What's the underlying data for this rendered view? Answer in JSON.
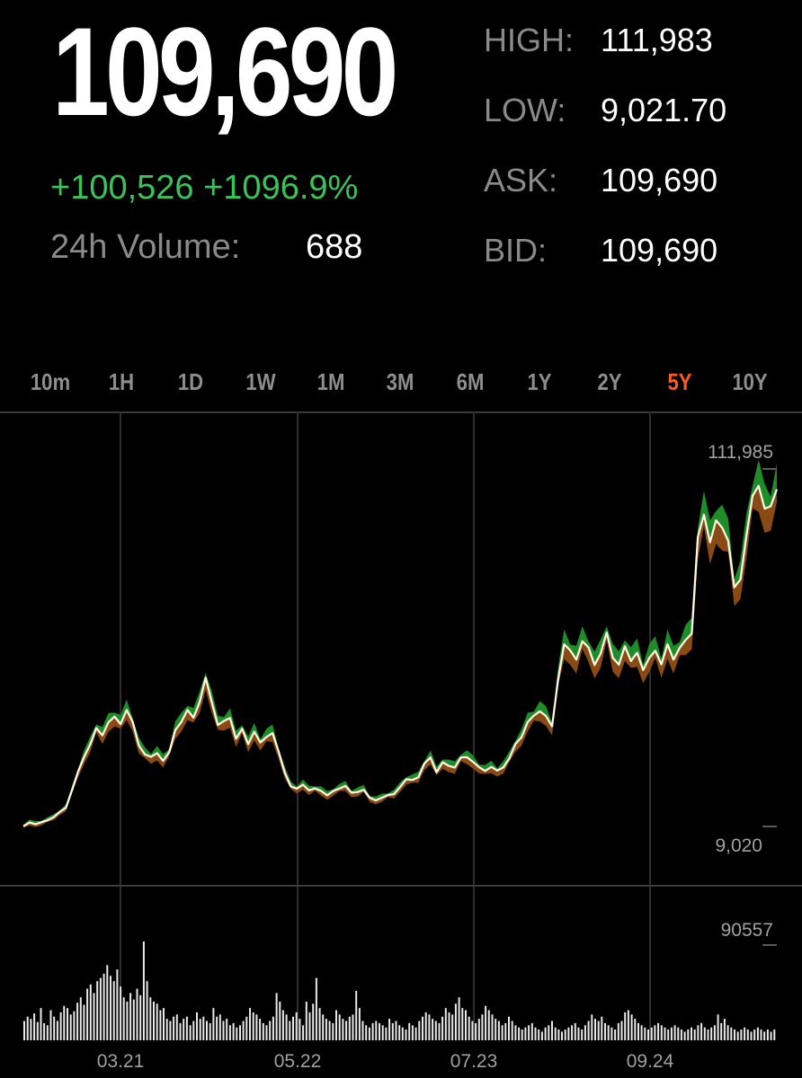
{
  "header": {
    "price": "109,690",
    "change": "+100,526 +1096.9%",
    "volume_label": "24h Volume:",
    "volume_value": "688",
    "stats": [
      {
        "label": "HIGH:",
        "value": "111,983"
      },
      {
        "label": "LOW:",
        "value": "9,021.70"
      },
      {
        "label": "ASK:",
        "value": "109,690"
      },
      {
        "label": "BID:",
        "value": "109,690"
      }
    ]
  },
  "range_tabs": {
    "items": [
      "10m",
      "1H",
      "1D",
      "1W",
      "1M",
      "3M",
      "6M",
      "1Y",
      "2Y",
      "5Y",
      "10Y"
    ],
    "active": "5Y"
  },
  "colors": {
    "up": "#39c35a",
    "active_tab": "#ff5a1f",
    "high_band": "#1f8c2a",
    "low_band": "#8a4a14",
    "line": "#fffbe6"
  },
  "chart_data": [
    {
      "type": "line",
      "title": "",
      "x_ticks": [
        "03.21",
        "05.22",
        "07.23",
        "09.24"
      ],
      "y_max_label": "111,985",
      "y_min_label": "9,020",
      "ylim": [
        9020,
        111985
      ],
      "series": [
        {
          "values": [
            9100,
            10200,
            9700,
            10300,
            10900,
            11800,
            13400,
            14600,
            19800,
            25400,
            29800,
            33500,
            38400,
            36200,
            40100,
            41800,
            39600,
            43800,
            40200,
            33200,
            30500,
            29800,
            30900,
            28600,
            31200,
            37800,
            40200,
            43800,
            41500,
            46100,
            53400,
            46200,
            39300,
            40500,
            41400,
            35200,
            38200,
            33600,
            37300,
            34100,
            35700,
            36900,
            31500,
            25200,
            21000,
            20300,
            21500,
            19800,
            20400,
            19600,
            18300,
            19600,
            20300,
            21100,
            19100,
            19300,
            20000,
            17600,
            16800,
            17600,
            18400,
            18700,
            20800,
            23100,
            22900,
            23700,
            27800,
            29600,
            25200,
            28200,
            27100,
            26600,
            29600,
            29700,
            28300,
            26700,
            25600,
            26800,
            25700,
            26700,
            29400,
            33700,
            35700,
            40200,
            42100,
            43400,
            42000,
            38900,
            52800,
            63400,
            61600,
            58800,
            64300,
            62500,
            57200,
            60600,
            66900,
            59400,
            57300,
            62800,
            58400,
            60900,
            55700,
            59300,
            61500,
            57400,
            63400,
            58800,
            62300,
            64700,
            66600,
            95400,
            102100,
            93800,
            100400,
            98200,
            94300,
            80400,
            82700,
            95800,
            107700,
            110700,
            103900,
            104600,
            109690
          ]
        }
      ]
    },
    {
      "type": "bar",
      "title": "",
      "y_max_label": "90557",
      "x_ticks": [
        "03.21",
        "05.22",
        "07.23",
        "09.24"
      ],
      "series": [
        {
          "values": [
            18,
            22,
            20,
            25,
            17,
            30,
            16,
            14,
            28,
            22,
            18,
            26,
            32,
            30,
            24,
            27,
            35,
            40,
            33,
            48,
            52,
            44,
            55,
            58,
            62,
            70,
            60,
            55,
            66,
            50,
            40,
            36,
            44,
            38,
            48,
            42,
            92,
            55,
            40,
            36,
            34,
            28,
            30,
            20,
            18,
            22,
            24,
            16,
            20,
            22,
            14,
            18,
            26,
            20,
            22,
            18,
            16,
            30,
            22,
            24,
            18,
            20,
            14,
            16,
            12,
            14,
            18,
            22,
            30,
            26,
            24,
            20,
            16,
            14,
            18,
            22,
            44,
            36,
            28,
            24,
            18,
            22,
            26,
            20,
            14,
            36,
            26,
            34,
            58,
            30,
            24,
            20,
            18,
            16,
            28,
            24,
            20,
            18,
            22,
            24,
            46,
            30,
            18,
            14,
            12,
            16,
            18,
            16,
            14,
            12,
            20,
            16,
            18,
            14,
            12,
            10,
            16,
            14,
            12,
            18,
            22,
            26,
            24,
            20,
            18,
            16,
            22,
            30,
            26,
            24,
            34,
            40,
            30,
            28,
            22,
            18,
            16,
            20,
            24,
            32,
            28,
            24,
            20,
            18,
            14,
            16,
            22,
            18,
            14,
            12,
            10,
            12,
            14,
            16,
            12,
            10,
            8,
            12,
            14,
            18,
            12,
            10,
            8,
            10,
            12,
            14,
            16,
            12,
            10,
            14,
            18,
            24,
            20,
            18,
            22,
            16,
            14,
            12,
            10,
            16,
            18,
            26,
            28,
            24,
            20,
            16,
            14,
            12,
            10,
            12,
            14,
            16,
            14,
            12,
            10,
            12,
            14,
            12,
            10,
            8,
            10,
            12,
            10,
            14,
            16,
            12,
            10,
            12,
            14,
            24,
            16,
            20,
            14,
            12,
            10,
            8,
            10,
            12,
            10,
            8,
            10,
            12,
            10,
            8,
            10,
            8,
            10
          ]
        }
      ]
    }
  ]
}
